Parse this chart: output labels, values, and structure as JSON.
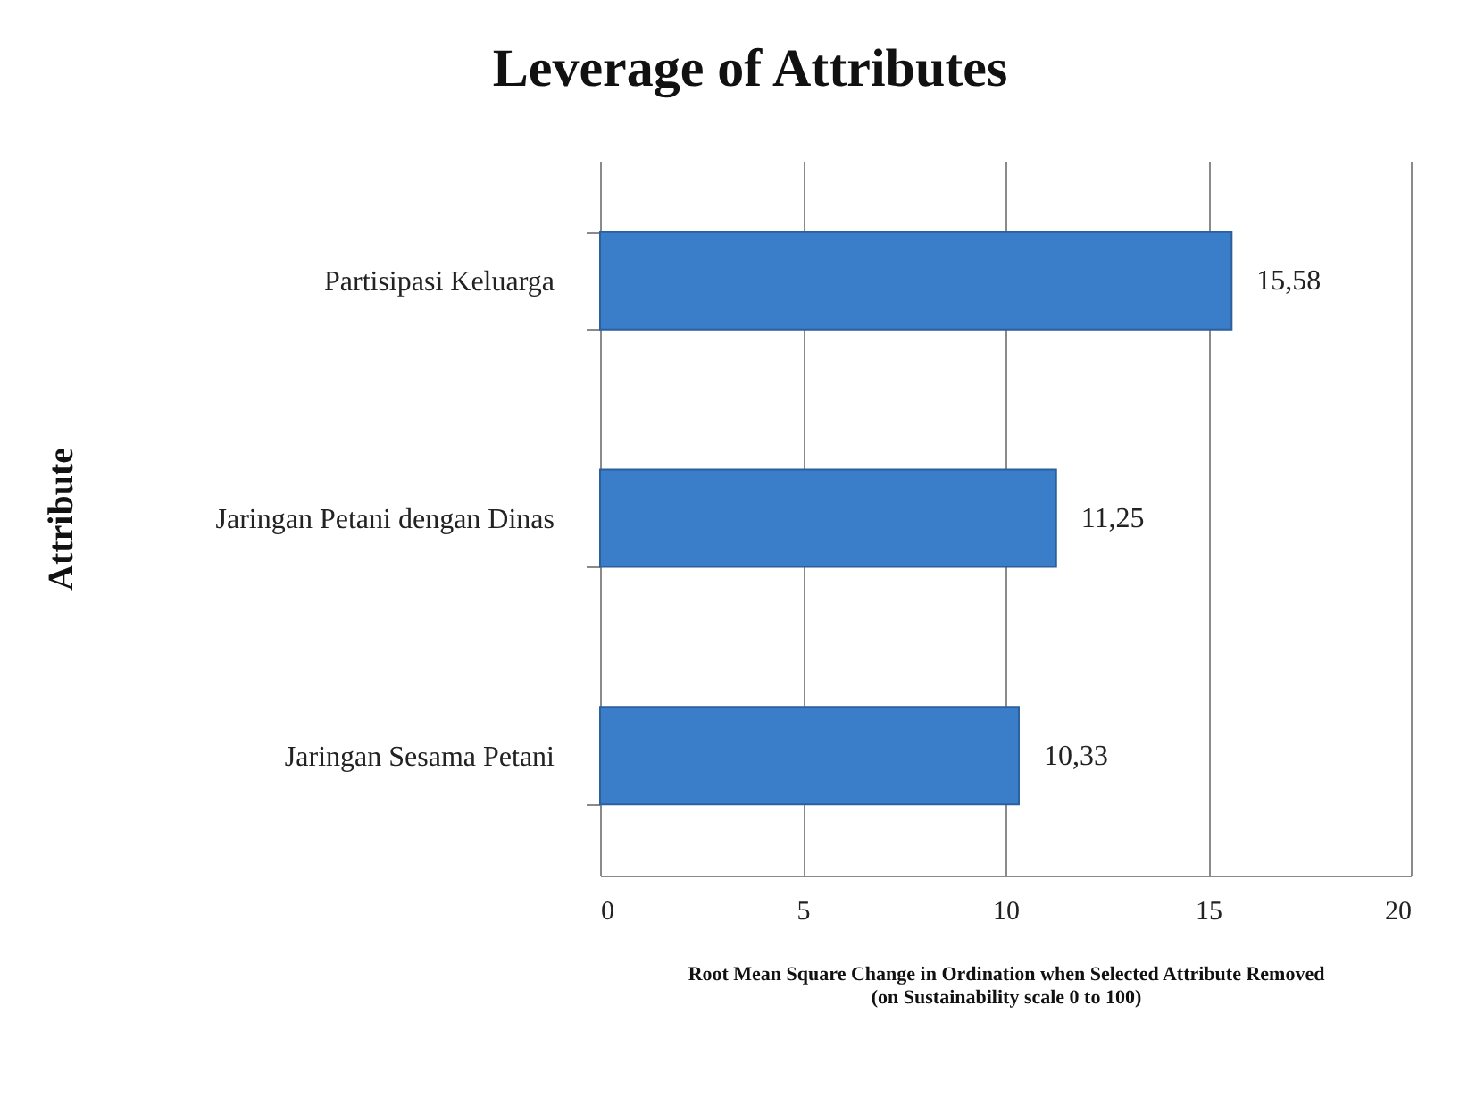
{
  "chart_data": {
    "type": "bar",
    "orientation": "horizontal",
    "title": "Leverage of Attributes",
    "xlabel": "Root Mean Square Change in Ordination when Selected Attribute Removed\n(on Sustainability scale 0 to 100)",
    "ylabel": "Attribute",
    "categories": [
      "Partisipasi Keluarga",
      "Jaringan Petani dengan Dinas",
      "Jaringan Sesama Petani"
    ],
    "values": [
      15.58,
      11.25,
      10.33
    ],
    "value_labels": [
      "15,58",
      "11,25",
      "10,33"
    ],
    "color": "#3a7dc9",
    "xlim": [
      0,
      20
    ],
    "xticks": [
      0,
      5,
      10,
      15,
      20
    ],
    "grid": "x"
  }
}
